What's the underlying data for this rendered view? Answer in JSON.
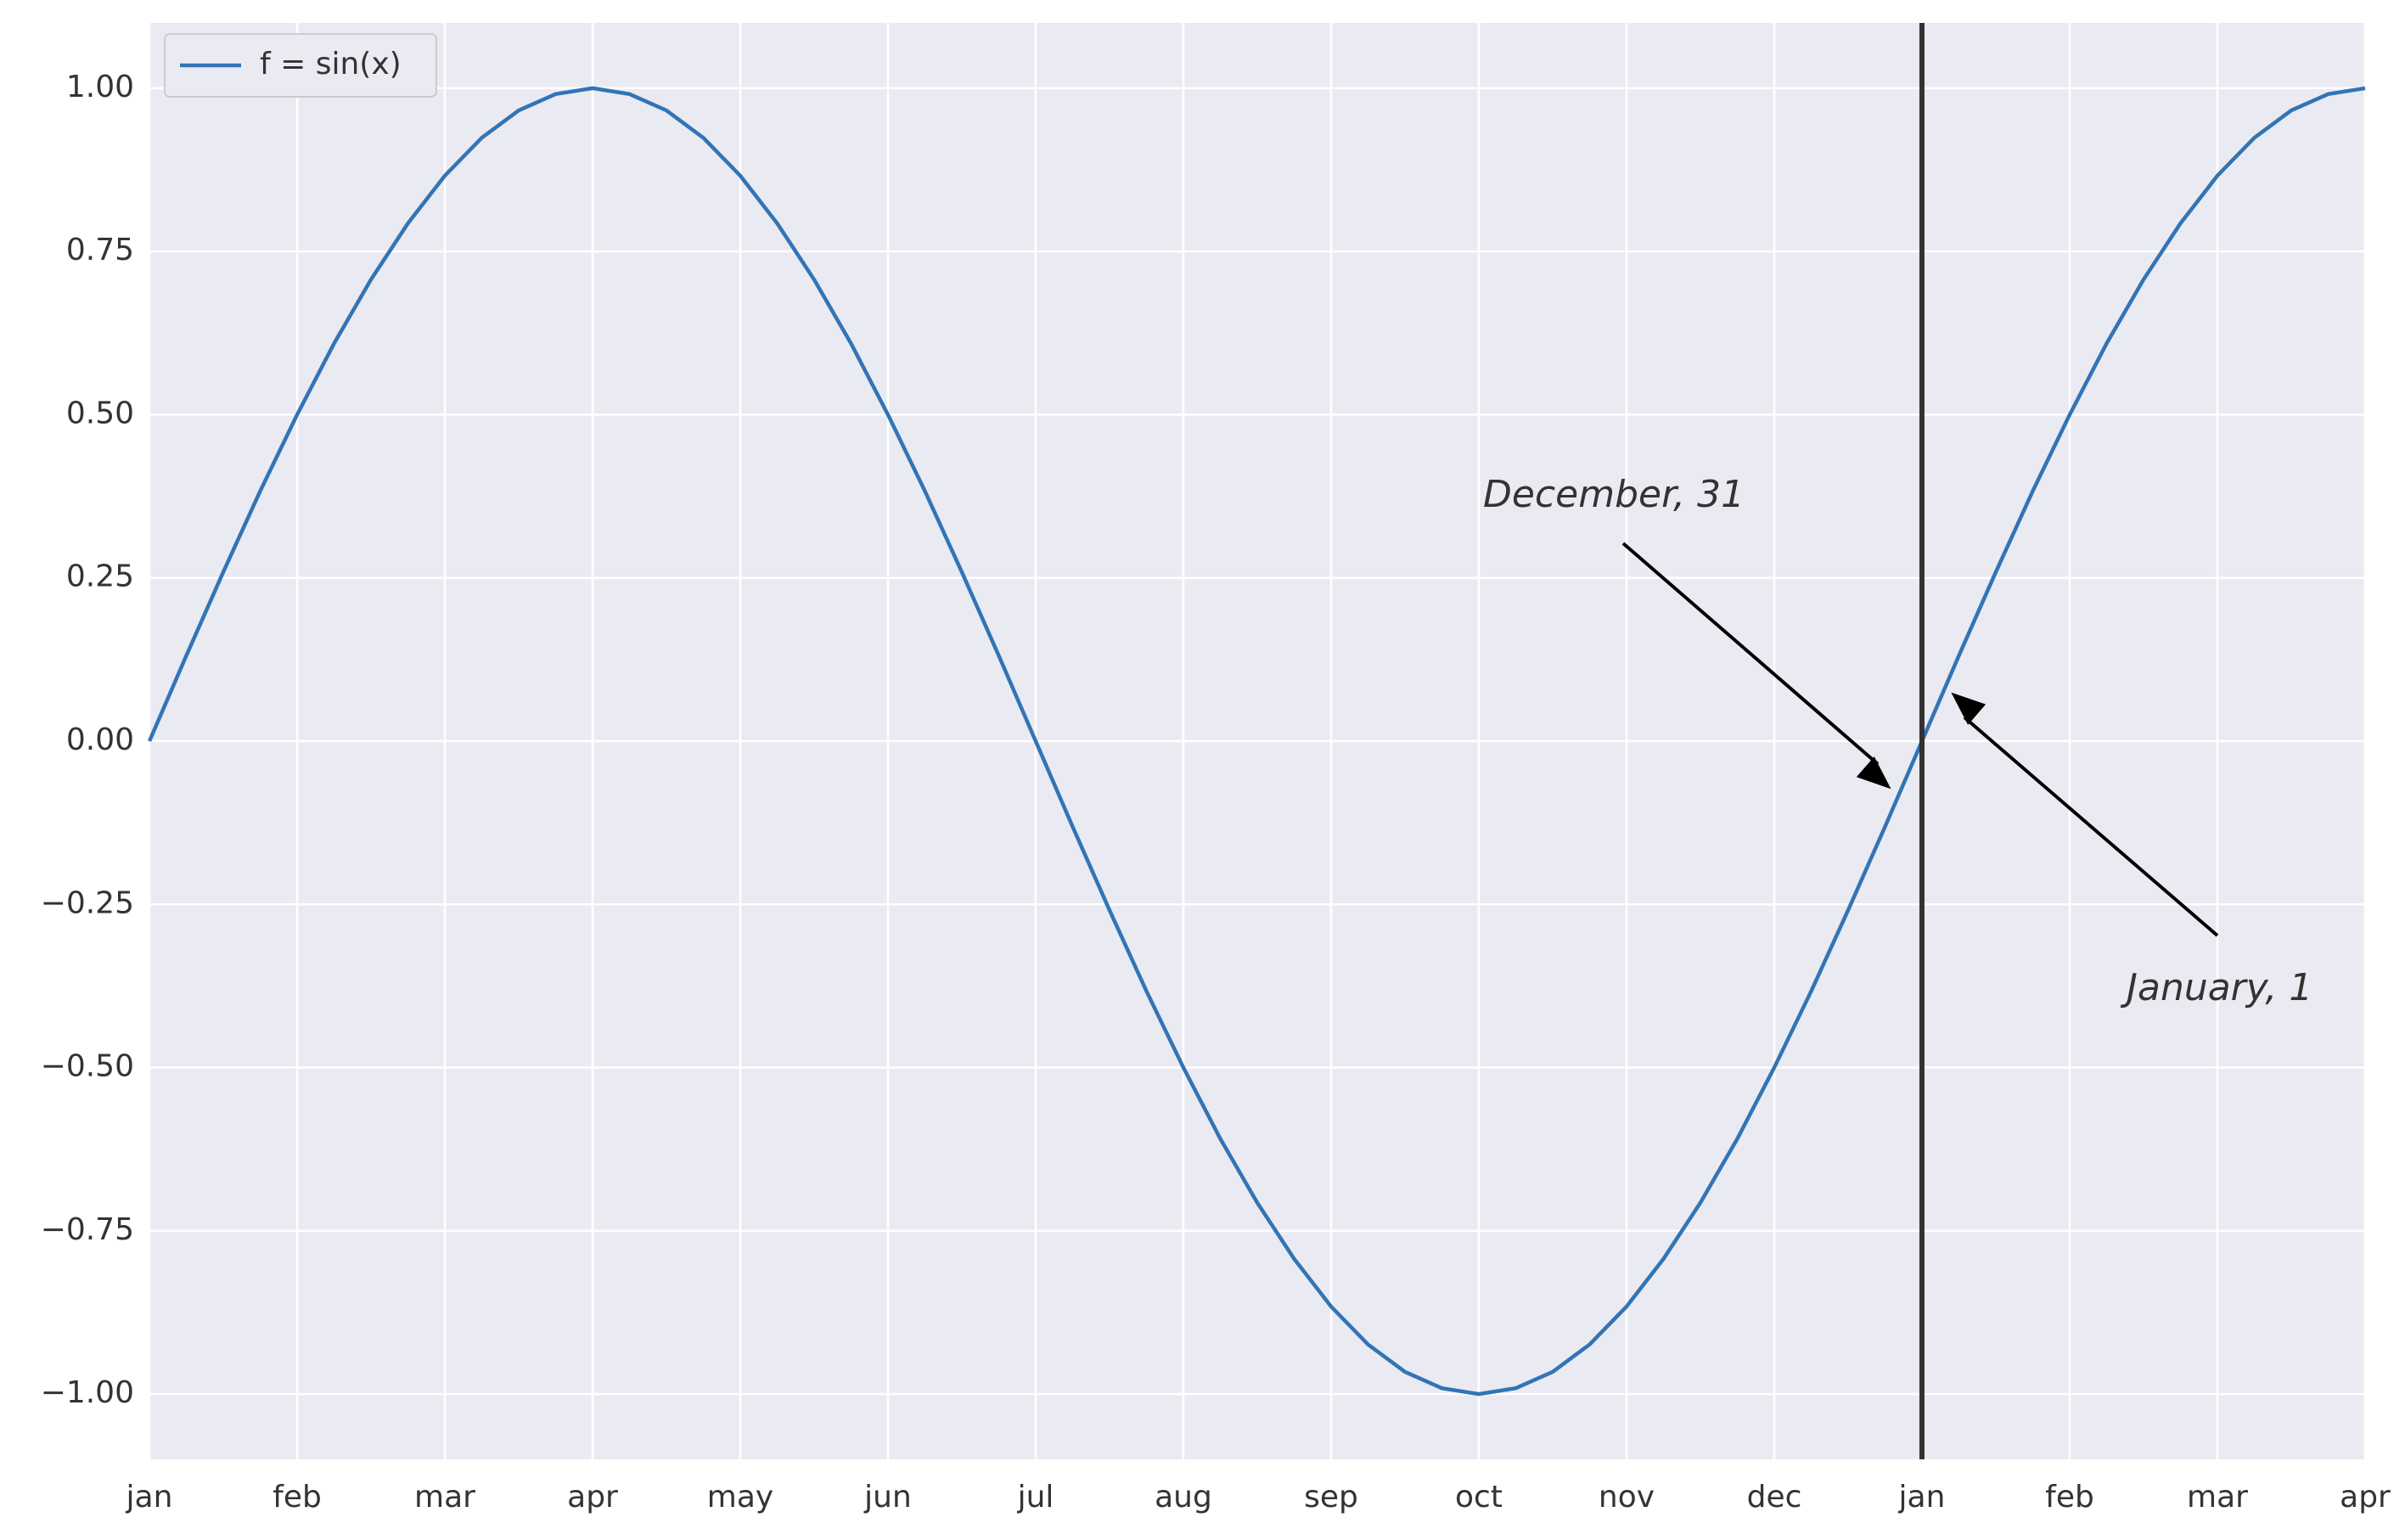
{
  "chart_data": {
    "type": "line",
    "x": [
      0,
      0.25,
      0.5,
      0.75,
      1,
      1.25,
      1.5,
      1.75,
      2,
      2.25,
      2.5,
      2.75,
      3,
      3.25,
      3.5,
      3.75,
      4,
      4.25,
      4.5,
      4.75,
      5,
      5.25,
      5.5,
      5.75,
      6,
      6.25,
      6.5,
      6.75,
      7,
      7.25,
      7.5,
      7.75,
      8,
      8.25,
      8.5,
      8.75,
      9,
      9.25,
      9.5,
      9.75,
      10,
      10.25,
      10.5,
      10.75,
      11,
      11.25,
      11.5,
      11.75,
      12,
      12.25,
      12.5,
      12.75,
      13,
      13.25,
      13.5,
      13.75,
      14,
      14.25,
      14.5,
      14.75,
      15
    ],
    "series": [
      {
        "name": "f = sin(x)",
        "color": "#3274b5",
        "values": [
          0,
          0.131,
          0.259,
          0.383,
          0.5,
          0.609,
          0.707,
          0.793,
          0.866,
          0.924,
          0.966,
          0.991,
          1,
          0.991,
          0.966,
          0.924,
          0.866,
          0.793,
          0.707,
          0.609,
          0.5,
          0.383,
          0.259,
          0.131,
          0,
          -0.131,
          -0.259,
          -0.383,
          -0.5,
          -0.609,
          -0.707,
          -0.793,
          -0.866,
          -0.924,
          -0.966,
          -0.991,
          -1,
          -0.991,
          -0.966,
          -0.924,
          -0.866,
          -0.793,
          -0.707,
          -0.609,
          -0.5,
          -0.383,
          -0.259,
          -0.131,
          0,
          0.131,
          0.259,
          0.383,
          0.5,
          0.609,
          0.707,
          0.793,
          0.866,
          0.924,
          0.966,
          0.991,
          1
        ]
      }
    ],
    "xlim": [
      0,
      15
    ],
    "xticks": [
      {
        "value": 0,
        "label": "jan"
      },
      {
        "value": 1,
        "label": "feb"
      },
      {
        "value": 2,
        "label": "mar"
      },
      {
        "value": 3,
        "label": "apr"
      },
      {
        "value": 4,
        "label": "may"
      },
      {
        "value": 5,
        "label": "jun"
      },
      {
        "value": 6,
        "label": "jul"
      },
      {
        "value": 7,
        "label": "aug"
      },
      {
        "value": 8,
        "label": "sep"
      },
      {
        "value": 9,
        "label": "oct"
      },
      {
        "value": 10,
        "label": "nov"
      },
      {
        "value": 11,
        "label": "dec"
      },
      {
        "value": 12,
        "label": "jan"
      },
      {
        "value": 13,
        "label": "feb"
      },
      {
        "value": 14,
        "label": "mar"
      },
      {
        "value": 15,
        "label": "apr"
      }
    ],
    "ylim": [
      -1.1,
      1.1
    ],
    "yticks": [
      {
        "value": -1,
        "label": "−1.00"
      },
      {
        "value": -0.75,
        "label": "−0.75"
      },
      {
        "value": -0.5,
        "label": "−0.50"
      },
      {
        "value": -0.25,
        "label": "−0.25"
      },
      {
        "value": 0,
        "label": "0.00"
      },
      {
        "value": 0.25,
        "label": "0.25"
      },
      {
        "value": 0.5,
        "label": "0.50"
      },
      {
        "value": 0.75,
        "label": "0.75"
      },
      {
        "value": 1,
        "label": "1.00"
      }
    ],
    "grid": true,
    "legend": "upper left",
    "vline_x": 12,
    "vline_color": "#333333",
    "annotations": [
      "December, 31",
      "January, 1"
    ]
  }
}
